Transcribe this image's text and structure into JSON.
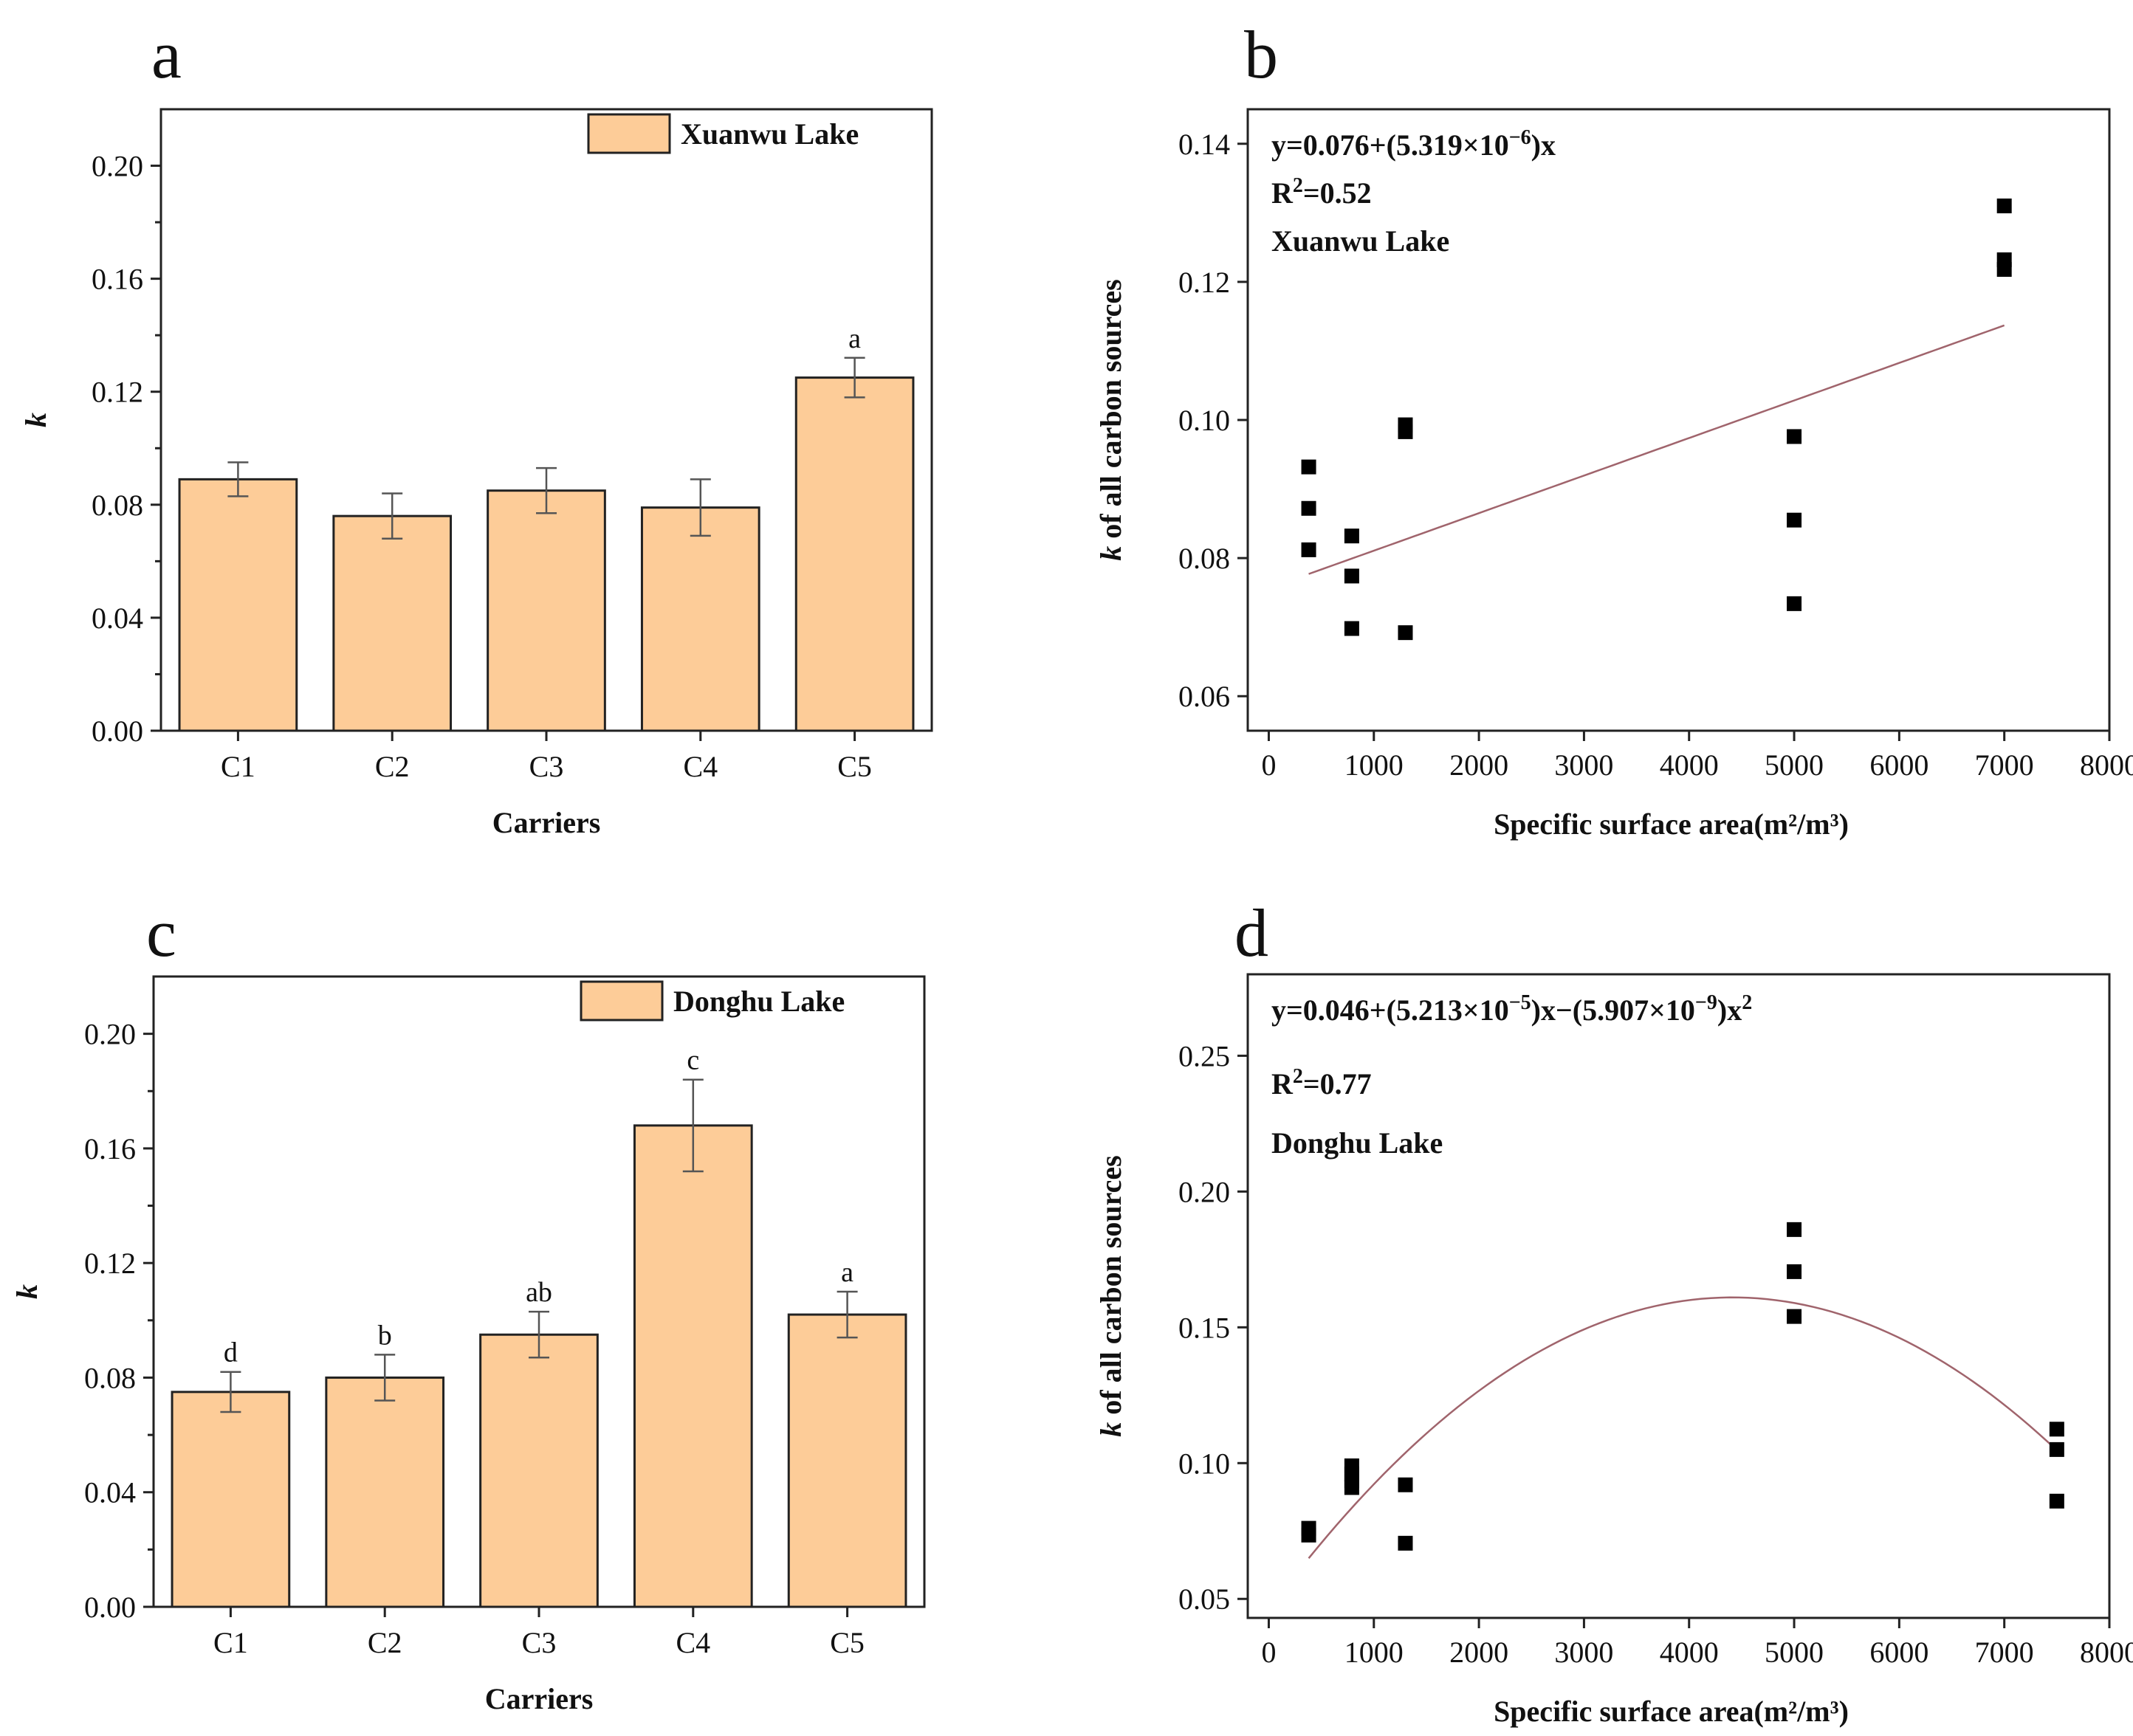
{
  "colors": {
    "bar_fill": "#fdcc98",
    "fit_line": "#a0646c",
    "point": "#000000",
    "frame": "#222222"
  },
  "chart_data": [
    {
      "panel": "a",
      "type": "bar",
      "title": "",
      "legend": "Xuanwu Lake",
      "legend_position": "top-right",
      "xlabel": "Carriers",
      "ylabel": "k",
      "categories": [
        "C1",
        "C2",
        "C3",
        "C4",
        "C5"
      ],
      "values": [
        0.089,
        0.076,
        0.085,
        0.079,
        0.125
      ],
      "errors": [
        0.006,
        0.008,
        0.008,
        0.01,
        0.007
      ],
      "significance": [
        "",
        "",
        "",
        "",
        "a"
      ],
      "ylim": [
        0,
        0.22
      ],
      "yticks": [
        0.0,
        0.04,
        0.08,
        0.12,
        0.16,
        0.2
      ],
      "ytick_labels": [
        "0.00",
        "0.04",
        "0.08",
        "0.12",
        "0.16",
        "0.20"
      ]
    },
    {
      "panel": "b",
      "type": "scatter",
      "xlabel": "Specific surface area(m²/m³)",
      "ylabel": "k of all carbon sources",
      "annotations": {
        "equation": {
          "text": "y=0.076+(5.319×10",
          "sup": "−6",
          "tail": ")x"
        },
        "r2": {
          "text": "R",
          "sup": "2",
          "tail": "=0.52"
        },
        "lake": "Xuanwu Lake"
      },
      "x": [
        380,
        380,
        380,
        790,
        790,
        790,
        1300,
        1300,
        1300,
        5000,
        5000,
        5000,
        7000,
        7000,
        7000
      ],
      "y": [
        0.0932,
        0.0872,
        0.0812,
        0.0832,
        0.0774,
        0.0698,
        0.0993,
        0.0983,
        0.0692,
        0.0976,
        0.0855,
        0.0734,
        0.131,
        0.1232,
        0.1218
      ],
      "fit": {
        "kind": "linear",
        "x_range": [
          380,
          7000
        ],
        "y_range": [
          0.0777,
          0.1137
        ]
      },
      "xlim": [
        -200,
        8000
      ],
      "ylim": [
        0.055,
        0.145
      ],
      "xticks": [
        0,
        1000,
        2000,
        3000,
        4000,
        5000,
        6000,
        7000,
        8000
      ],
      "xtick_labels": [
        "0",
        "1000",
        "2000",
        "3000",
        "4000",
        "5000",
        "6000",
        "7000",
        "8000"
      ],
      "yticks": [
        0.06,
        0.08,
        0.1,
        0.12,
        0.14
      ],
      "ytick_labels": [
        "0.06",
        "0.08",
        "0.10",
        "0.12",
        "0.14"
      ]
    },
    {
      "panel": "c",
      "type": "bar",
      "title": "",
      "legend": "Donghu Lake",
      "legend_position": "top-right",
      "xlabel": "Carriers",
      "ylabel": "k",
      "categories": [
        "C1",
        "C2",
        "C3",
        "C4",
        "C5"
      ],
      "values": [
        0.075,
        0.08,
        0.095,
        0.168,
        0.102
      ],
      "errors": [
        0.007,
        0.008,
        0.008,
        0.016,
        0.008
      ],
      "significance": [
        "d",
        "b",
        "ab",
        "c",
        "a"
      ],
      "ylim": [
        0,
        0.22
      ],
      "yticks": [
        0.0,
        0.04,
        0.08,
        0.12,
        0.16,
        0.2
      ],
      "ytick_labels": [
        "0.00",
        "0.04",
        "0.08",
        "0.12",
        "0.16",
        "0.20"
      ]
    },
    {
      "panel": "d",
      "type": "scatter",
      "xlabel": "Specific surface area(m²/m³)",
      "ylabel": "k of all carbon sources",
      "annotations": {
        "equation": {
          "text": "y=0.046+(5.213×10",
          "sup": "−5",
          "mid": ")x−(5.907×10",
          "sup2": "−9",
          "tail": ")x",
          "sup3": "2"
        },
        "r2": {
          "text": "R",
          "sup": "2",
          "tail": "=0.77"
        },
        "lake": "Donghu Lake"
      },
      "x": [
        380,
        380,
        790,
        790,
        790,
        790,
        1300,
        1300,
        5000,
        5000,
        5000,
        7500,
        7500,
        7500
      ],
      "y": [
        0.076,
        0.0735,
        0.099,
        0.096,
        0.0935,
        0.091,
        0.092,
        0.0705,
        0.186,
        0.1705,
        0.154,
        0.1125,
        0.105,
        0.086
      ],
      "fit": {
        "kind": "quadratic",
        "coefficients": [
          0.046,
          5.213e-05,
          -5.907e-09
        ],
        "x_range": [
          380,
          7500
        ]
      },
      "xlim": [
        -200,
        8000
      ],
      "ylim": [
        0.043,
        0.28
      ],
      "xticks": [
        0,
        1000,
        2000,
        3000,
        4000,
        5000,
        6000,
        7000,
        8000
      ],
      "xtick_labels": [
        "0",
        "1000",
        "2000",
        "3000",
        "4000",
        "5000",
        "6000",
        "7000",
        "8000"
      ],
      "yticks": [
        0.05,
        0.1,
        0.15,
        0.2,
        0.25
      ],
      "ytick_labels": [
        "0.05",
        "0.10",
        "0.15",
        "0.20",
        "0.25"
      ]
    }
  ]
}
